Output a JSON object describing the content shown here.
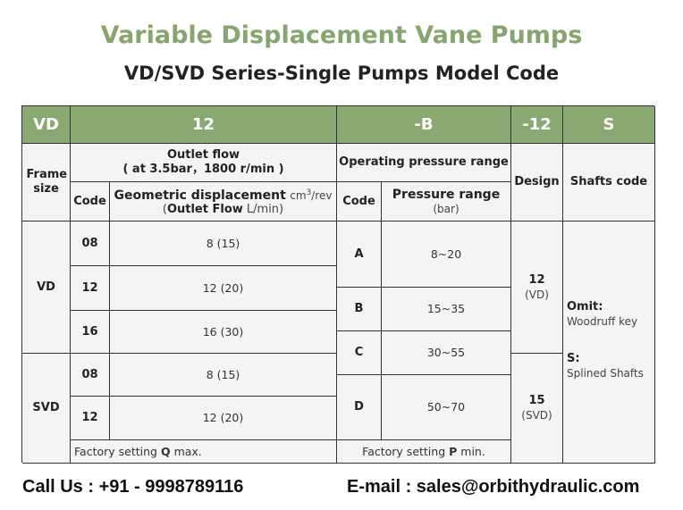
{
  "title": "Variable Displacement Vane Pumps",
  "subtitle": "VD/SVD Series-Single Pumps Model Code",
  "colors": {
    "header_green": "#8aa872",
    "title_green": "#86a56f",
    "cell_bg": "#f4f4f4"
  },
  "header": [
    "VD",
    "12",
    "-B",
    "-12",
    "S"
  ],
  "labels": {
    "frame_size": "Frame size",
    "outlet_flow": "Outlet flow",
    "outlet_cond": "( at 3.5bar，1800 r/min )",
    "code": "Code",
    "geo_disp": "Geometric displacement",
    "geo_unit_pre": "cm",
    "geo_unit_sup": "3",
    "geo_unit_post": "/rev",
    "outlet_open": "(",
    "outlet_flow_bold": "Outlet Flow",
    "outlet_unit": "L/min)",
    "op_pressure": "Operating pressure range",
    "pressure_range": "Pressure range",
    "pressure_unit": "(bar)",
    "design": "Design",
    "shafts_code": "Shafts code"
  },
  "frames": [
    {
      "name": "VD",
      "rows": [
        {
          "code": "08",
          "value": "8 (15)"
        },
        {
          "code": "12",
          "value": "12 (20)"
        },
        {
          "code": "16",
          "value": "16 (30)"
        }
      ]
    },
    {
      "name": "SVD",
      "rows": [
        {
          "code": "08",
          "value": "8 (15)"
        },
        {
          "code": "12",
          "value": "12 (20)"
        }
      ]
    }
  ],
  "pressure": [
    {
      "code": "A",
      "range": "8~20"
    },
    {
      "code": "B",
      "range": "15~35"
    },
    {
      "code": "C",
      "range": "30~55"
    },
    {
      "code": "D",
      "range": "50~70"
    }
  ],
  "design": [
    {
      "code": "12",
      "sub": "(VD)"
    },
    {
      "code": "15",
      "sub": "(SVD)"
    }
  ],
  "shafts": [
    {
      "code": "Omit:",
      "desc": "Woodruff key"
    },
    {
      "code": "S:",
      "desc": "Splined Shafts"
    }
  ],
  "factory_q": {
    "pre": "Factory setting ",
    "bold": "Q",
    "post": " max."
  },
  "factory_p": {
    "pre": "Factory setting ",
    "bold": "P",
    "post": " min."
  },
  "footer": {
    "call": "Call Us : +91 - 9998789116",
    "email": "E-mail : sales@orbithydraulic.com"
  }
}
